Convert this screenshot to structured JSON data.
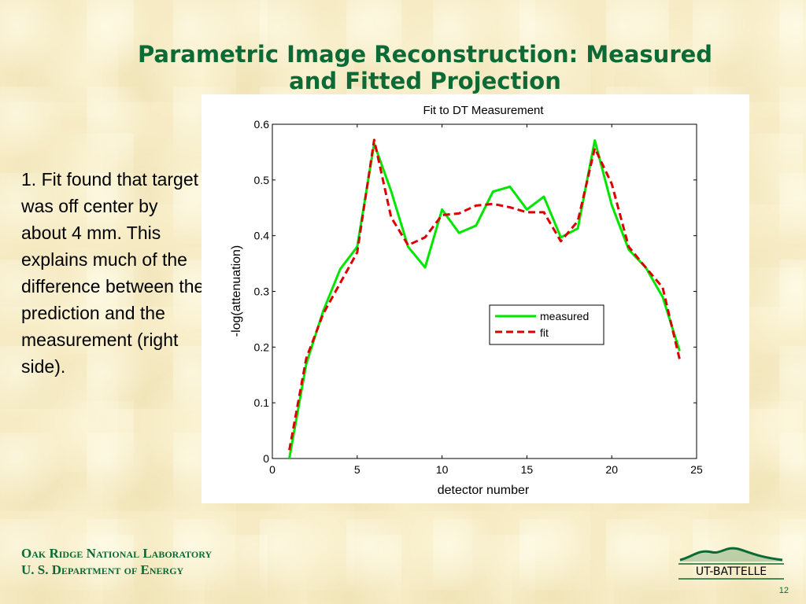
{
  "slide": {
    "title_line1": "Parametric Image Reconstruction: Measured",
    "title_line2": "and Fitted Projection",
    "body_text": "1. Fit found that target was off center by about 4 mm.  This explains much of the difference between the prediction and the measurement (right side).",
    "footer_line1": "Oak Ridge National Laboratory",
    "footer_line2": "U. S. Department of Energy",
    "logo_text": "UT-BATTELLE",
    "page_number": "12"
  },
  "colors": {
    "title": "#0b6a35",
    "background": "#f6ebc4",
    "measured": "#00e600",
    "fit": "#dd0000"
  },
  "chart_data": {
    "type": "line",
    "title": "Fit to DT Measurement",
    "xlabel": "detector number",
    "ylabel": "-log(attenuation)",
    "xlim": [
      0,
      25
    ],
    "ylim": [
      0,
      0.6
    ],
    "xticks": [
      "0",
      "5",
      "10",
      "15",
      "20",
      "25"
    ],
    "yticks": [
      "0",
      "0.1",
      "0.2",
      "0.3",
      "0.4",
      "0.5",
      "0.6"
    ],
    "grid": false,
    "legend_position": "center-right",
    "x": [
      1,
      2,
      3,
      4,
      5,
      6,
      7,
      8,
      9,
      10,
      11,
      12,
      13,
      14,
      15,
      16,
      17,
      18,
      19,
      20,
      21,
      22,
      23,
      24
    ],
    "series": [
      {
        "name": "measured",
        "style": "solid",
        "values": [
          0.0,
          0.17,
          0.265,
          0.34,
          0.38,
          0.565,
          0.48,
          0.38,
          0.343,
          0.447,
          0.405,
          0.418,
          0.479,
          0.488,
          0.447,
          0.47,
          0.397,
          0.413,
          0.571,
          0.455,
          0.375,
          0.343,
          0.29,
          0.193
        ]
      },
      {
        "name": "fit",
        "style": "dashed",
        "values": [
          0.015,
          0.18,
          0.26,
          0.315,
          0.37,
          0.572,
          0.433,
          0.383,
          0.397,
          0.437,
          0.44,
          0.454,
          0.457,
          0.451,
          0.442,
          0.442,
          0.39,
          0.426,
          0.557,
          0.493,
          0.38,
          0.343,
          0.307,
          0.178
        ]
      }
    ]
  }
}
